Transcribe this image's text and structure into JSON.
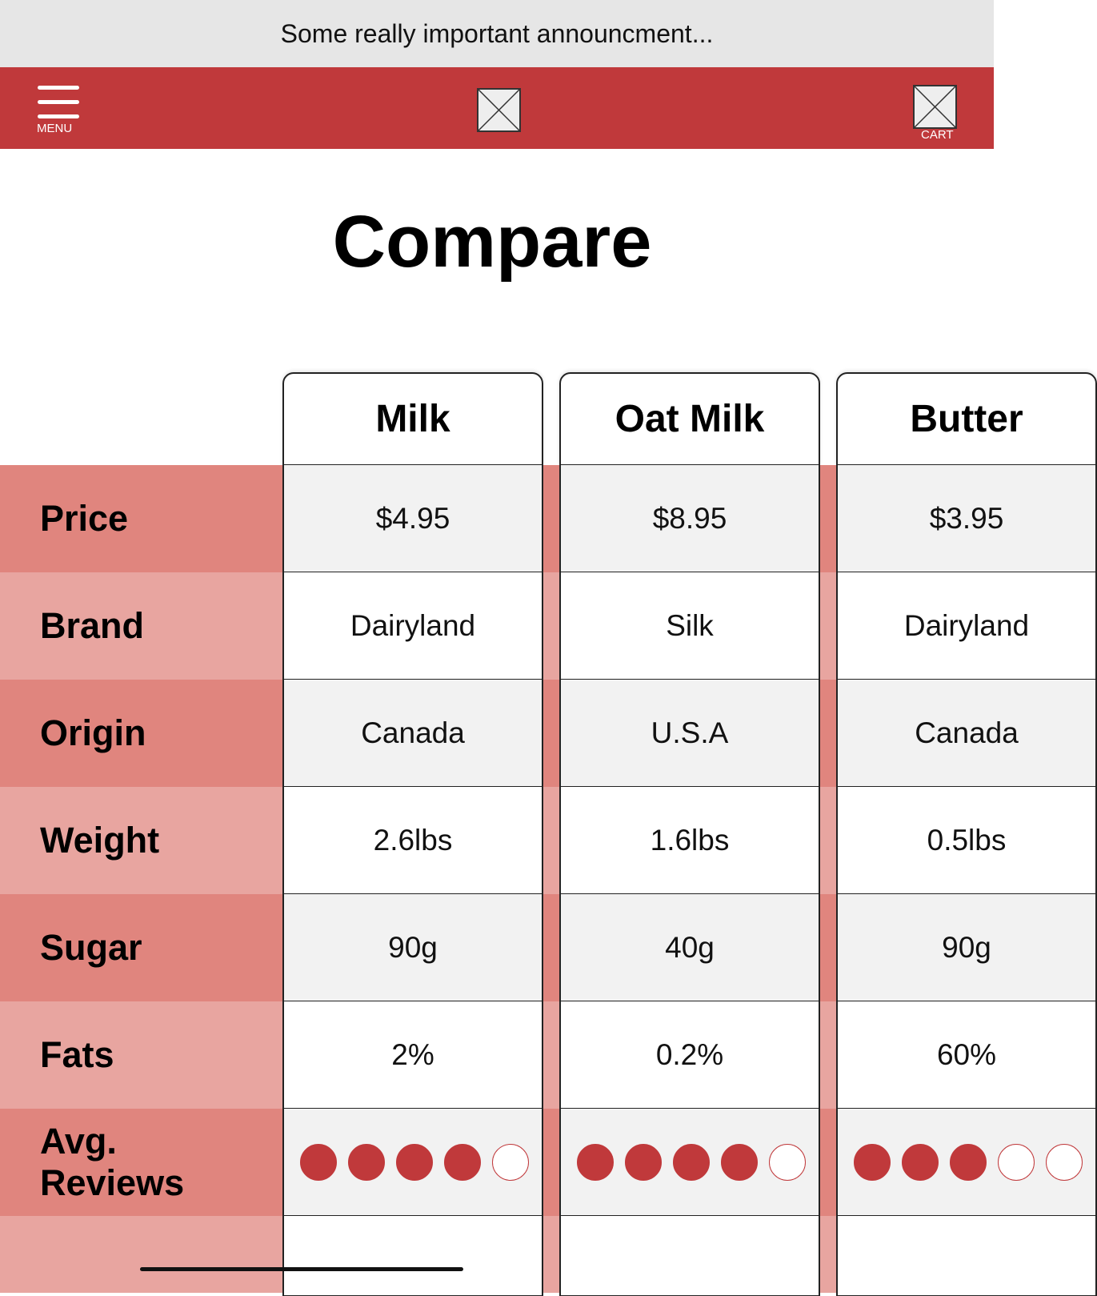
{
  "announcement": "Some really important announcment...",
  "nav": {
    "menu": "MENU",
    "cart": "CART"
  },
  "title": "Compare",
  "table": {
    "row_labels": [
      "Price",
      "Brand",
      "Origin",
      "Weight",
      "Sugar",
      "Fats",
      "Avg. Reviews"
    ],
    "rating_max": 5,
    "columns": [
      {
        "name": "Milk",
        "cells": [
          "$4.95",
          "Dairyland",
          "Canada",
          "2.6lbs",
          "90g",
          "2%"
        ],
        "rating": 4
      },
      {
        "name": "Oat Milk",
        "cells": [
          "$8.95",
          "Silk",
          "U.S.A",
          "1.6lbs",
          "40g",
          "0.2%"
        ],
        "rating": 4
      },
      {
        "name": "Butter",
        "cells": [
          "$3.95",
          "Dairyland",
          "Canada",
          "0.5lbs",
          "90g",
          "60%"
        ],
        "rating": 3
      }
    ]
  }
}
